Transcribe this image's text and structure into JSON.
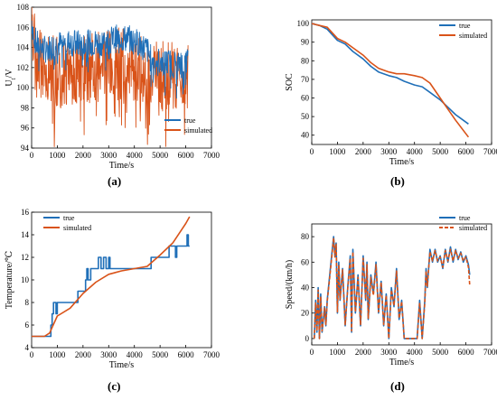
{
  "colors": {
    "true": "#1f6fb8",
    "simulated": "#d95319",
    "axis": "#000000"
  },
  "captions": {
    "a": "(a)",
    "b": "(b)",
    "c": "(c)",
    "d": "(d)"
  },
  "chart_data": [
    {
      "id": "a",
      "type": "line",
      "xlabel": "Time/s",
      "ylabel": "U_t/V",
      "xlim": [
        0,
        7000
      ],
      "ylim": [
        94,
        108
      ],
      "xticks": [
        0,
        1000,
        2000,
        3000,
        4000,
        5000,
        6000,
        7000
      ],
      "yticks": [
        94,
        96,
        98,
        100,
        102,
        104,
        106,
        108
      ],
      "legend": "bottom-right",
      "series": [
        {
          "name": "true",
          "style": "solid",
          "noise": true,
          "amp": 1.4,
          "seed": 7,
          "x": [
            0,
            100,
            200,
            500,
            1000,
            1500,
            2000,
            2500,
            3000,
            3500,
            4000,
            4500,
            4600,
            5000,
            5500,
            6000,
            6100
          ],
          "y": [
            106.7,
            105.0,
            104.3,
            103.8,
            104.3,
            104.5,
            104.3,
            104.5,
            104.7,
            105.0,
            104.7,
            103.8,
            103.0,
            102.6,
            102.4,
            102.3,
            103.0
          ]
        },
        {
          "name": "simulated",
          "style": "solid",
          "noise": true,
          "amp": 3.6,
          "seed": 19,
          "x": [
            0,
            100,
            200,
            500,
            1000,
            1500,
            2000,
            2500,
            3000,
            3500,
            4000,
            4500,
            4600,
            5000,
            5500,
            6000,
            6100
          ],
          "y": [
            105.5,
            104.0,
            102.5,
            102.0,
            101.5,
            101.8,
            101.8,
            102.0,
            102.2,
            102.4,
            102.0,
            101.5,
            101.0,
            101.3,
            101.0,
            100.8,
            102.0
          ]
        }
      ]
    },
    {
      "id": "b",
      "type": "line",
      "xlabel": "Time/s",
      "ylabel": "SOC",
      "xlim": [
        0,
        7000
      ],
      "ylim": [
        35,
        102
      ],
      "xticks": [
        0,
        1000,
        2000,
        3000,
        4000,
        5000,
        6000,
        7000
      ],
      "yticks": [
        40,
        50,
        60,
        70,
        80,
        90,
        100
      ],
      "legend": "top-right",
      "series": [
        {
          "name": "true",
          "style": "solid",
          "x": [
            0,
            300,
            600,
            1000,
            1300,
            1600,
            2000,
            2300,
            2600,
            3000,
            3300,
            3600,
            4000,
            4300,
            4600,
            5000,
            5300,
            5600,
            6100
          ],
          "y": [
            100,
            99,
            97,
            91,
            89,
            85,
            81,
            77,
            74,
            72,
            71,
            69,
            67,
            66,
            63,
            59,
            55,
            51,
            46
          ]
        },
        {
          "name": "simulated",
          "style": "solid",
          "x": [
            0,
            300,
            600,
            1000,
            1300,
            1600,
            2000,
            2300,
            2600,
            3000,
            3300,
            3600,
            4000,
            4300,
            4600,
            5000,
            5300,
            5600,
            6100
          ],
          "y": [
            100,
            99,
            98,
            92,
            90,
            87,
            83,
            79,
            76,
            74,
            73,
            73,
            72,
            71,
            68,
            60,
            54,
            48,
            39
          ]
        }
      ]
    },
    {
      "id": "c",
      "type": "line",
      "xlabel": "Time/s",
      "ylabel": "Temperature/℃",
      "xlim": [
        0,
        7000
      ],
      "ylim": [
        4,
        16
      ],
      "xticks": [
        0,
        1000,
        2000,
        3000,
        4000,
        5000,
        6000,
        7000
      ],
      "yticks": [
        4,
        6,
        8,
        10,
        12,
        14,
        16
      ],
      "legend": "top-left",
      "series": [
        {
          "name": "true",
          "style": "step",
          "x": [
            0,
            700,
            750,
            800,
            850,
            900,
            950,
            1000,
            1800,
            2100,
            2150,
            2200,
            2300,
            2400,
            2600,
            2700,
            2800,
            2900,
            3000,
            3050,
            3100,
            4600,
            4650,
            5300,
            5350,
            5600,
            5650,
            5800,
            5850,
            6050,
            6100,
            6150
          ],
          "y": [
            5,
            5,
            6,
            7,
            8,
            8,
            7,
            8,
            9,
            10,
            11,
            10,
            11,
            11,
            12,
            11,
            12,
            11,
            12,
            11,
            11,
            11,
            12,
            12,
            13,
            12,
            13,
            13,
            13,
            14,
            13,
            13
          ]
        },
        {
          "name": "simulated",
          "style": "solid",
          "x": [
            0,
            500,
            700,
            1000,
            1500,
            2000,
            2500,
            3000,
            3500,
            4000,
            4500,
            5000,
            5500,
            6000,
            6150
          ],
          "y": [
            5,
            5,
            5.3,
            6.8,
            7.5,
            8.8,
            9.8,
            10.5,
            10.8,
            11,
            11.2,
            12.2,
            13.3,
            15,
            15.6
          ]
        }
      ]
    },
    {
      "id": "d",
      "type": "line",
      "xlabel": "Time/s",
      "ylabel": "Speed/(km/h)",
      "xlim": [
        0,
        7000
      ],
      "ylim": [
        -5,
        90
      ],
      "xticks": [
        0,
        1000,
        2000,
        3000,
        4000,
        5000,
        6000,
        7000
      ],
      "yticks": [
        0,
        20,
        40,
        60,
        80
      ],
      "legend": "top-right",
      "series": [
        {
          "name": "true",
          "style": "solid",
          "x": [
            100,
            150,
            200,
            250,
            300,
            350,
            400,
            500,
            550,
            600,
            700,
            800,
            850,
            900,
            950,
            1000,
            1050,
            1100,
            1200,
            1300,
            1400,
            1500,
            1550,
            1600,
            1700,
            1800,
            1900,
            2000,
            2100,
            2150,
            2200,
            2300,
            2400,
            2500,
            2600,
            2700,
            2800,
            2900,
            3000,
            3100,
            3200,
            3300,
            3400,
            3500,
            3600,
            3700,
            3800,
            3900,
            4000,
            4100,
            4200,
            4300,
            4400,
            4450,
            4500,
            4600,
            4700,
            4800,
            4900,
            5000,
            5100,
            5200,
            5300,
            5400,
            5500,
            5600,
            5700,
            5800,
            5900,
            6000,
            6100,
            6150
          ],
          "y": [
            0,
            30,
            5,
            40,
            0,
            35,
            5,
            25,
            10,
            30,
            50,
            70,
            80,
            65,
            75,
            20,
            60,
            30,
            55,
            10,
            40,
            65,
            5,
            70,
            20,
            50,
            10,
            65,
            30,
            60,
            15,
            50,
            35,
            60,
            20,
            45,
            10,
            35,
            0,
            40,
            25,
            55,
            15,
            30,
            0,
            0,
            0,
            0,
            0,
            0,
            30,
            0,
            30,
            55,
            40,
            70,
            60,
            70,
            60,
            65,
            55,
            70,
            60,
            72,
            60,
            70,
            62,
            68,
            60,
            65,
            58,
            50
          ]
        },
        {
          "name": "simulated",
          "style": "dashed",
          "x": [
            100,
            150,
            200,
            250,
            300,
            350,
            400,
            500,
            550,
            600,
            700,
            800,
            850,
            900,
            950,
            1000,
            1050,
            1100,
            1200,
            1300,
            1400,
            1500,
            1550,
            1600,
            1700,
            1800,
            1900,
            2000,
            2100,
            2150,
            2200,
            2300,
            2400,
            2500,
            2600,
            2700,
            2800,
            2900,
            3000,
            3100,
            3200,
            3300,
            3400,
            3500,
            3600,
            3700,
            3800,
            3900,
            4000,
            4100,
            4200,
            4300,
            4400,
            4450,
            4500,
            4600,
            4700,
            4800,
            4900,
            5000,
            5100,
            5200,
            5300,
            5400,
            5500,
            5600,
            5700,
            5800,
            5900,
            6000,
            6100,
            6150
          ],
          "y": [
            0,
            28,
            6,
            38,
            0,
            33,
            6,
            24,
            11,
            29,
            48,
            68,
            79,
            64,
            74,
            21,
            58,
            31,
            54,
            11,
            39,
            63,
            6,
            68,
            21,
            48,
            11,
            63,
            31,
            58,
            16,
            48,
            34,
            58,
            21,
            44,
            11,
            34,
            0,
            38,
            26,
            53,
            16,
            29,
            0,
            0,
            0,
            0,
            0,
            0,
            28,
            0,
            28,
            53,
            41,
            68,
            61,
            69,
            61,
            64,
            56,
            69,
            61,
            70,
            61,
            69,
            63,
            67,
            61,
            64,
            56,
            42
          ]
        }
      ]
    }
  ]
}
